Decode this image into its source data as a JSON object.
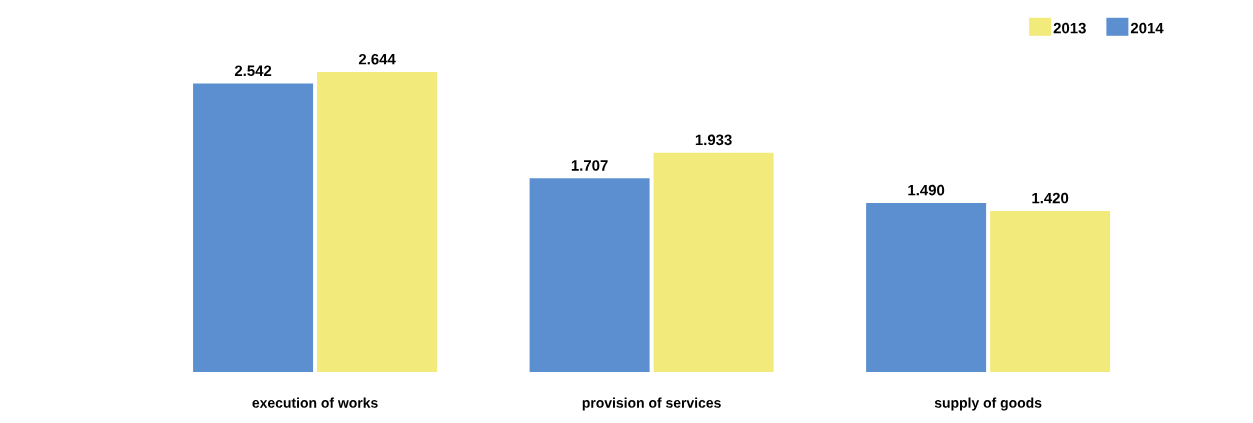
{
  "chart_data": {
    "type": "bar",
    "categories": [
      "execution of works",
      "provision of services",
      "supply of goods"
    ],
    "series": [
      {
        "name": "2014",
        "color": "#5b8fd0",
        "values": [
          2.542,
          1.707,
          1.49
        ],
        "value_labels": [
          "2.542",
          "1.707",
          "1.490"
        ]
      },
      {
        "name": "2013",
        "color": "#f3ea7c",
        "values": [
          2.644,
          1.933,
          1.42
        ],
        "value_labels": [
          "2.644",
          "1.933",
          "1.420"
        ]
      }
    ],
    "legend": "top right"
  }
}
